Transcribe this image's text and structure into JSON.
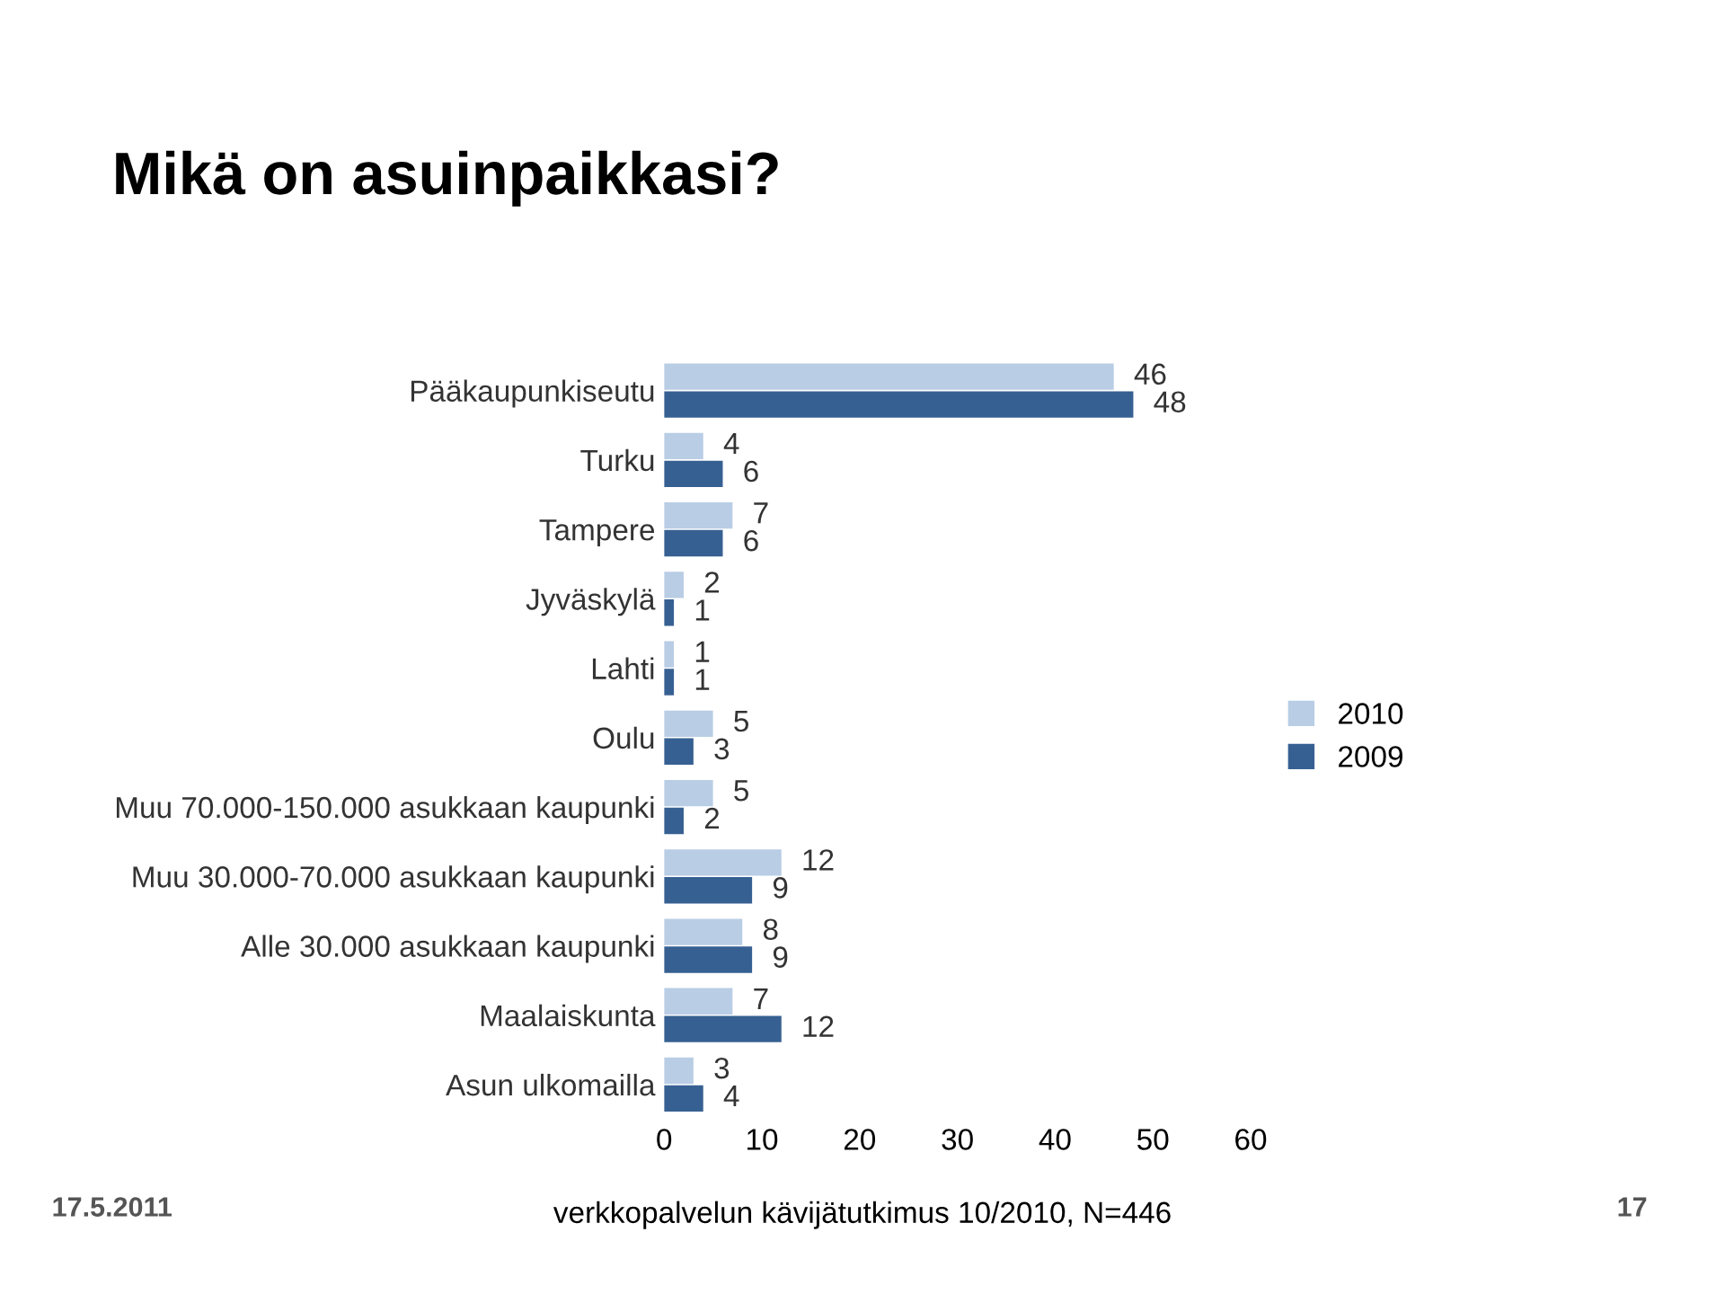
{
  "chart_data": {
    "type": "bar",
    "orientation": "horizontal",
    "title": "Mikä on asuinpaikkasi?",
    "categories": [
      "Pääkaupunkiseutu",
      "Turku",
      "Tampere",
      "Jyväskylä",
      "Lahti",
      "Oulu",
      "Muu 70.000-150.000 asukkaan kaupunki",
      "Muu 30.000-70.000 asukkaan kaupunki",
      "Alle 30.000 asukkaan kaupunki",
      "Maalaiskunta",
      "Asun ulkomailla"
    ],
    "series": [
      {
        "name": "2010",
        "color": "#b9cde5",
        "values": [
          46,
          4,
          7,
          2,
          1,
          5,
          5,
          12,
          8,
          7,
          3
        ]
      },
      {
        "name": "2009",
        "color": "#376092",
        "values": [
          48,
          6,
          6,
          1,
          1,
          3,
          2,
          9,
          9,
          12,
          4
        ]
      }
    ],
    "xlim": [
      0,
      60
    ],
    "xticks": [
      0,
      10,
      20,
      30,
      40,
      50,
      60
    ],
    "data_labels": true,
    "grid": false,
    "legend": "right",
    "annotations": [
      "17.5.2011",
      "verkkopalvelun kävijätutkimus 10/2010, N=446",
      "17"
    ]
  }
}
